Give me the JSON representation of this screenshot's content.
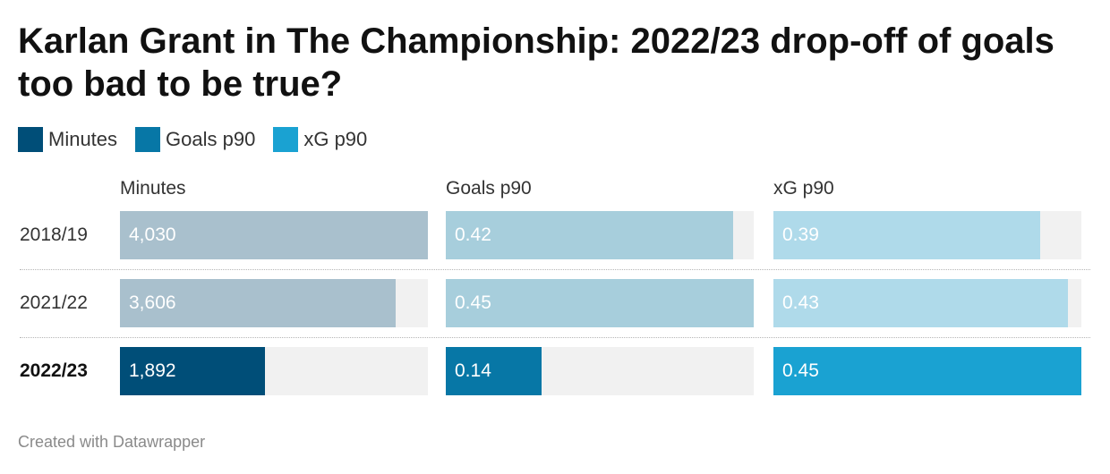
{
  "title": "Karlan Grant in The Championship: 2022/23 drop-off of goals too bad to be true?",
  "legend": [
    {
      "label": "Minutes",
      "color": "#004e78"
    },
    {
      "label": "Goals p90",
      "color": "#0777a6"
    },
    {
      "label": "xG p90",
      "color": "#1aa2d2"
    }
  ],
  "footer": "Created with Datawrapper",
  "chart_data": {
    "type": "bar",
    "title": "Karlan Grant in The Championship: 2022/23 drop-off of goals too bad to be true?",
    "categories": [
      "2018/19",
      "2021/22",
      "2022/23"
    ],
    "highlight": "2022/23",
    "series": [
      {
        "name": "Minutes",
        "values": [
          4030,
          3606,
          1892
        ],
        "labels": [
          "4,030",
          "3,606",
          "1,892"
        ],
        "max": 4030,
        "color": "#004e78",
        "muted_color": "#a9c0cd"
      },
      {
        "name": "Goals p90",
        "values": [
          0.42,
          0.45,
          0.14
        ],
        "labels": [
          "0.42",
          "0.45",
          "0.14"
        ],
        "max": 0.45,
        "color": "#0777a6",
        "muted_color": "#a7cedc"
      },
      {
        "name": "xG p90",
        "values": [
          0.39,
          0.43,
          0.45
        ],
        "labels": [
          "0.39",
          "0.43",
          "0.45"
        ],
        "max": 0.45,
        "color": "#1aa2d2",
        "muted_color": "#afdaea"
      }
    ]
  }
}
